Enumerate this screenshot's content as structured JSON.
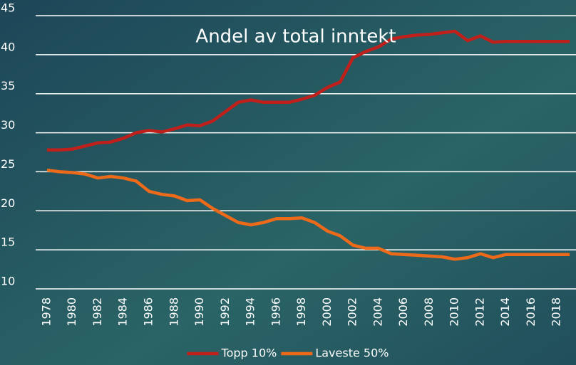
{
  "chart_data": {
    "type": "line",
    "title": "Andel av total inntekt",
    "x": [
      1978,
      1979,
      1980,
      1981,
      1982,
      1983,
      1984,
      1985,
      1986,
      1987,
      1988,
      1989,
      1990,
      1991,
      1992,
      1993,
      1994,
      1995,
      1996,
      1997,
      1998,
      1999,
      2000,
      2001,
      2002,
      2003,
      2004,
      2005,
      2006,
      2007,
      2008,
      2009,
      2010,
      2011,
      2012,
      2013,
      2014,
      2015,
      2016,
      2017,
      2018,
      2019
    ],
    "series": [
      {
        "name": "Topp 10%",
        "color": "#c0201b",
        "values": [
          27.8,
          27.8,
          27.9,
          28.3,
          28.7,
          28.8,
          29.3,
          30.0,
          30.3,
          30.1,
          30.5,
          31.0,
          30.9,
          31.5,
          32.7,
          33.9,
          34.2,
          33.9,
          33.9,
          33.9,
          34.3,
          34.8,
          35.8,
          36.5,
          39.6,
          40.4,
          41.0,
          42.0,
          42.3,
          42.5,
          42.6,
          42.8,
          43.0,
          41.8,
          42.4,
          41.6,
          41.7,
          41.7,
          41.7,
          41.7,
          41.7,
          41.7
        ]
      },
      {
        "name": "Laveste 50%",
        "color": "#ec6a1a",
        "values": [
          25.2,
          25.0,
          24.9,
          24.7,
          24.2,
          24.4,
          24.2,
          23.8,
          22.5,
          22.1,
          21.9,
          21.3,
          21.4,
          20.3,
          19.4,
          18.5,
          18.2,
          18.5,
          19.0,
          19.0,
          19.1,
          18.5,
          17.4,
          16.8,
          15.6,
          15.2,
          15.2,
          14.5,
          14.4,
          14.3,
          14.2,
          14.1,
          13.8,
          14.0,
          14.5,
          14.0,
          14.4,
          14.4,
          14.4,
          14.4,
          14.4,
          14.4
        ]
      }
    ],
    "xlim": [
      1977.5,
      2019.5
    ],
    "xticks": [
      1978,
      1980,
      1982,
      1984,
      1986,
      1988,
      1990,
      1992,
      1994,
      1996,
      1998,
      2000,
      2002,
      2004,
      2006,
      2008,
      2010,
      2012,
      2014,
      2016,
      2018
    ],
    "ylim": [
      10,
      45
    ],
    "yticks": [
      10,
      15,
      20,
      25,
      30,
      35,
      40,
      45
    ],
    "grid": true,
    "legend": "bottom"
  }
}
